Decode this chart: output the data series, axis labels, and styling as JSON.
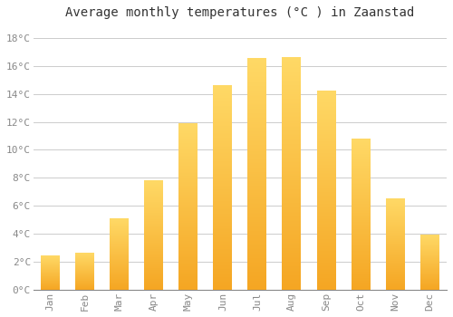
{
  "title": "Average monthly temperatures (°C ) in Zaanstad",
  "months": [
    "Jan",
    "Feb",
    "Mar",
    "Apr",
    "May",
    "Jun",
    "Jul",
    "Aug",
    "Sep",
    "Oct",
    "Nov",
    "Dec"
  ],
  "values": [
    2.4,
    2.6,
    5.1,
    7.8,
    11.9,
    14.6,
    16.5,
    16.6,
    14.2,
    10.8,
    6.5,
    3.9
  ],
  "bar_color_bottom": "#F5A623",
  "bar_color_top": "#FFD966",
  "background_color": "#FFFFFF",
  "grid_color": "#CCCCCC",
  "ytick_labels": [
    "0°C",
    "2°C",
    "4°C",
    "6°C",
    "8°C",
    "10°C",
    "12°C",
    "14°C",
    "16°C",
    "18°C"
  ],
  "ytick_values": [
    0,
    2,
    4,
    6,
    8,
    10,
    12,
    14,
    16,
    18
  ],
  "ylim": [
    0,
    19
  ],
  "title_fontsize": 10,
  "tick_fontsize": 8,
  "tick_color": "#888888",
  "font_family": "monospace",
  "bar_width": 0.55
}
